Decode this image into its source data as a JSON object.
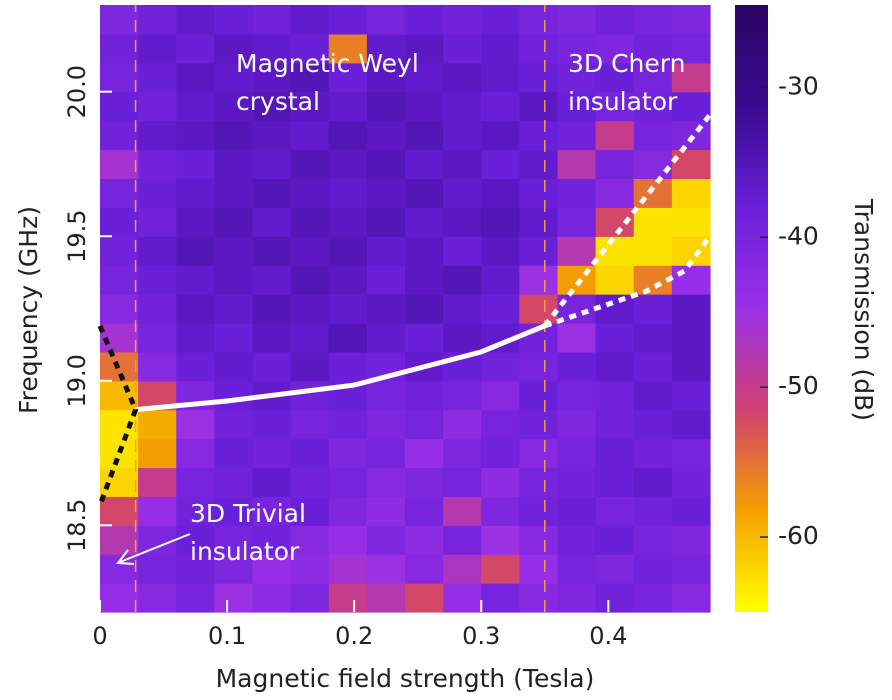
{
  "chart_data": {
    "type": "heatmap",
    "xlabel": "Magnetic field strength (Tesla)",
    "ylabel": "Frequency (GHz)",
    "colorbar_label": "Transmission (dB)",
    "xlim": [
      0,
      0.48
    ],
    "ylim": [
      18.2,
      20.3
    ],
    "xticks": [
      0,
      0.1,
      0.2,
      0.3,
      0.4
    ],
    "yticks": [
      18.5,
      {
        "value": 19,
        "label": "19.0"
      },
      19.5,
      {
        "value": 20,
        "label": "20.0"
      }
    ],
    "clim": [
      -65,
      -24.5
    ],
    "cticks": [
      -60,
      -50,
      -40,
      -30
    ],
    "colorscale": [
      "#ffff00",
      "#f5a000",
      "#d04070",
      "#9a30e8",
      "#6a1fd8",
      "#3a0a90",
      "#2a0560"
    ],
    "xbins": [
      0,
      0.03,
      0.06,
      0.09,
      0.12,
      0.15,
      0.18,
      0.21,
      0.24,
      0.27,
      0.3,
      0.33,
      0.36,
      0.39,
      0.42,
      0.45,
      0.48
    ],
    "ybins": [
      18.2,
      18.3,
      18.4,
      18.5,
      18.6,
      18.7,
      18.8,
      18.9,
      19.0,
      19.1,
      19.2,
      19.3,
      19.4,
      19.5,
      19.6,
      19.7,
      19.8,
      19.9,
      20.0,
      20.1,
      20.2,
      20.3
    ],
    "z": [
      [
        -44,
        -42,
        -40,
        -45,
        -43,
        -41,
        -50,
        -48,
        -52,
        -44,
        -40,
        -42,
        -41,
        -39,
        -40,
        -42
      ],
      [
        -42,
        -40,
        -39,
        -41,
        -44,
        -43,
        -46,
        -45,
        -42,
        -47,
        -52,
        -44,
        -40,
        -41,
        -39,
        -40
      ],
      [
        -48,
        -41,
        -38,
        -40,
        -39,
        -42,
        -44,
        -41,
        -43,
        -40,
        -45,
        -42,
        -39,
        -38,
        -40,
        -41
      ],
      [
        -52,
        -44,
        -39,
        -38,
        -40,
        -38,
        -41,
        -43,
        -40,
        -48,
        -41,
        -39,
        -38,
        -40,
        -39,
        -38
      ],
      [
        -62,
        -50,
        -40,
        -39,
        -37,
        -39,
        -40,
        -42,
        -41,
        -40,
        -43,
        -40,
        -39,
        -38,
        -37,
        -39
      ],
      [
        -63,
        -58,
        -42,
        -38,
        -39,
        -38,
        -41,
        -40,
        -44,
        -41,
        -39,
        -42,
        -40,
        -38,
        -39,
        -40
      ],
      [
        -63,
        -59,
        -45,
        -39,
        -38,
        -40,
        -39,
        -41,
        -40,
        -43,
        -40,
        -39,
        -41,
        -39,
        -38,
        -37
      ],
      [
        -60,
        -52,
        -41,
        -38,
        -37,
        -39,
        -38,
        -40,
        -39,
        -40,
        -42,
        -38,
        -40,
        -39,
        -37,
        -38
      ],
      [
        -55,
        -42,
        -38,
        -37,
        -38,
        -36,
        -38,
        -39,
        -37,
        -38,
        -39,
        -40,
        -38,
        -37,
        -38,
        -36
      ],
      [
        -46,
        -40,
        -37,
        -38,
        -36,
        -37,
        -35,
        -37,
        -38,
        -36,
        -37,
        -39,
        -45,
        -38,
        -37,
        -36
      ],
      [
        -42,
        -39,
        -36,
        -37,
        -35,
        -36,
        -37,
        -36,
        -35,
        -37,
        -38,
        -52,
        -40,
        -37,
        -38,
        -36
      ],
      [
        -40,
        -38,
        -37,
        -36,
        -37,
        -35,
        -36,
        -38,
        -36,
        -35,
        -37,
        -45,
        -58,
        -62,
        -56,
        -44
      ],
      [
        -39,
        -37,
        -35,
        -36,
        -35,
        -36,
        -35,
        -37,
        -36,
        -38,
        -36,
        -38,
        -48,
        -63,
        -63,
        -62
      ],
      [
        -38,
        -39,
        -36,
        -35,
        -37,
        -35,
        -36,
        -35,
        -37,
        -36,
        -35,
        -37,
        -40,
        -52,
        -63,
        -63
      ],
      [
        -40,
        -38,
        -37,
        -36,
        -35,
        -36,
        -37,
        -36,
        -35,
        -37,
        -36,
        -38,
        -39,
        -42,
        -55,
        -62
      ],
      [
        -46,
        -39,
        -38,
        -36,
        -37,
        -35,
        -36,
        -35,
        -37,
        -36,
        -38,
        -37,
        -48,
        -40,
        -42,
        -52
      ],
      [
        -39,
        -37,
        -36,
        -35,
        -36,
        -37,
        -35,
        -36,
        -35,
        -37,
        -36,
        -38,
        -39,
        -50,
        -40,
        -41
      ],
      [
        -38,
        -39,
        -37,
        -36,
        -35,
        -36,
        -37,
        -35,
        -36,
        -37,
        -38,
        -36,
        -38,
        -40,
        -39,
        -38
      ],
      [
        -40,
        -38,
        -36,
        -37,
        -36,
        -35,
        -38,
        -36,
        -37,
        -36,
        -37,
        -38,
        -39,
        -38,
        -40,
        -50
      ],
      [
        -39,
        -37,
        -38,
        -36,
        -37,
        -38,
        -56,
        -37,
        -36,
        -38,
        -37,
        -39,
        -40,
        -41,
        -39,
        -40
      ],
      [
        -41,
        -39,
        -37,
        -38,
        -39,
        -37,
        -38,
        -40,
        -38,
        -39,
        -38,
        -40,
        -41,
        -39,
        -40,
        -41
      ]
    ],
    "curves": [
      {
        "x": [
          0.028,
          0.028
        ],
        "y": [
          18.2,
          20.3
        ],
        "color": "#f0a040",
        "dash": "dashed"
      },
      {
        "x": [
          0.35,
          0.35
        ],
        "y": [
          18.2,
          20.3
        ],
        "color": "#f0a040",
        "dash": "dashed"
      },
      {
        "x": [
          0.028,
          0.1,
          0.2,
          0.3,
          0.35
        ],
        "y": [
          18.9,
          18.93,
          18.985,
          19.1,
          19.19
        ],
        "color": "#ffffff",
        "dash": "solid"
      },
      {
        "x": [
          0.35,
          0.48
        ],
        "y": [
          19.19,
          19.92
        ],
        "color": "#ffffff",
        "dash": "dotted"
      },
      {
        "x": [
          0.35,
          0.43,
          0.46,
          0.48
        ],
        "y": [
          19.19,
          19.31,
          19.38,
          19.5
        ],
        "color": "#ffffff",
        "dash": "dotted"
      },
      {
        "x": [
          0,
          0.028,
          0
        ],
        "y": [
          19.19,
          18.9,
          18.57
        ],
        "color": "#111111",
        "dash": "dotted"
      }
    ],
    "annotations": [
      [
        "Magnetic Weyl",
        "crystal"
      ],
      [
        "3D Chern",
        "insulator"
      ],
      [
        "3D Trivial",
        "insulator"
      ]
    ]
  }
}
